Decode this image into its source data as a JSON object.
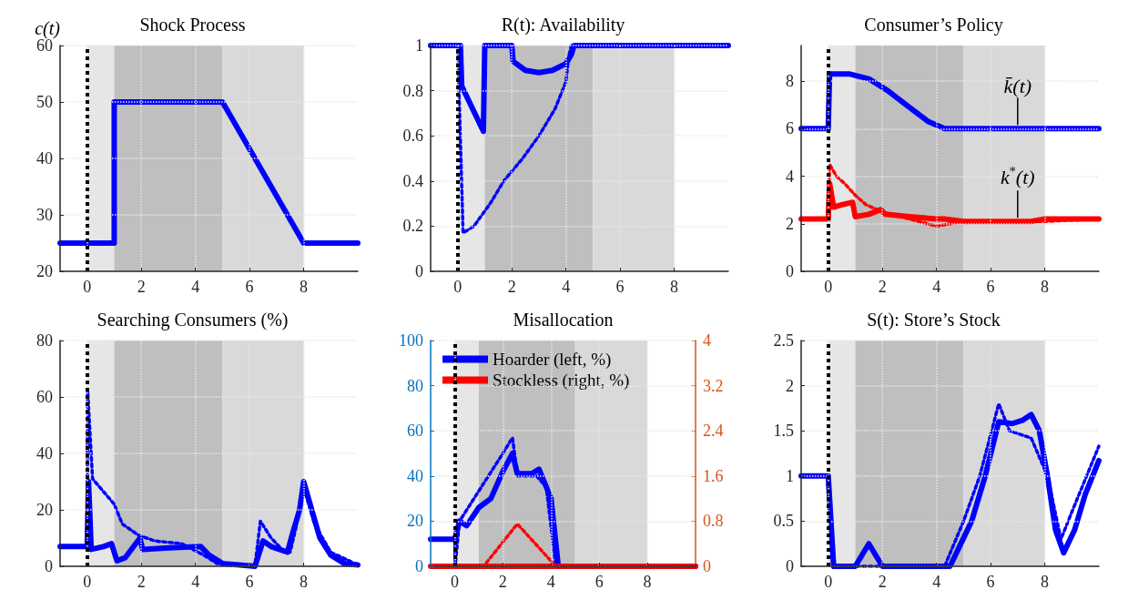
{
  "chart_data": [
    {
      "type": "line",
      "title": "Shock Process",
      "ylabel": "c(t)",
      "xlim": [
        -1,
        10
      ],
      "xticks": [
        0,
        2,
        4,
        6,
        8
      ],
      "ylim": [
        20,
        60
      ],
      "yticks": [
        20,
        30,
        40,
        50,
        60
      ],
      "grid": true,
      "legend": false,
      "marker": "none",
      "bands": [
        {
          "axis": "x",
          "from": 0,
          "to": 1,
          "color": "#e6e6e6"
        },
        {
          "axis": "x",
          "from": 1,
          "to": 5,
          "color": "#bfbfbf"
        },
        {
          "axis": "x",
          "from": 5,
          "to": 8,
          "color": "#d9d9d9"
        }
      ],
      "ref_lines": [
        {
          "axis": "x",
          "value": 0,
          "color": "#000000",
          "line_style": "dotted"
        }
      ],
      "series": [
        {
          "color": "#0000ff",
          "line_style": "solid",
          "x": [
            -1,
            1,
            1,
            5,
            8,
            10
          ],
          "values": [
            25,
            25,
            50,
            50,
            25,
            25
          ]
        }
      ]
    },
    {
      "type": "line",
      "title": "R(t): Availability",
      "xlim": [
        -1,
        10
      ],
      "xticks": [
        0,
        2,
        4,
        6,
        8
      ],
      "ylim": [
        0,
        1
      ],
      "yticks": [
        0,
        0.2,
        0.4,
        0.6,
        0.8,
        1
      ],
      "grid": true,
      "legend": false,
      "marker": "none",
      "bands": [
        {
          "axis": "x",
          "from": 0,
          "to": 1,
          "color": "#e6e6e6"
        },
        {
          "axis": "x",
          "from": 1,
          "to": 5,
          "color": "#bfbfbf"
        },
        {
          "axis": "x",
          "from": 5,
          "to": 8,
          "color": "#d9d9d9"
        }
      ],
      "ref_lines": [
        {
          "axis": "x",
          "value": 0,
          "color": "#000000",
          "line_style": "dotted"
        }
      ],
      "series": [
        {
          "color": "#0000ff",
          "line_style": "solid",
          "x": [
            -1,
            0.1,
            0.15,
            0.95,
            1,
            2,
            2.05,
            2.5,
            3,
            3.5,
            4,
            4.2,
            4.3,
            10
          ],
          "values": [
            1,
            1,
            0.82,
            0.62,
            1,
            1,
            0.93,
            0.89,
            0.88,
            0.89,
            0.92,
            0.96,
            1,
            1
          ]
        },
        {
          "color": "#0000ff",
          "line_style": "dotted",
          "x": [
            -1,
            0,
            0.2,
            0.6,
            1.2,
            1.7,
            2.4,
            3,
            3.6,
            4,
            4.1,
            4.2,
            10
          ],
          "values": [
            1,
            1,
            0.17,
            0.2,
            0.3,
            0.4,
            0.5,
            0.6,
            0.72,
            0.84,
            0.95,
            1,
            1
          ]
        }
      ]
    },
    {
      "type": "line",
      "title": "Consumer’s Policy",
      "xlim": [
        -1,
        10
      ],
      "xticks": [
        0,
        2,
        4,
        6,
        8
      ],
      "ylim": [
        0,
        9.5
      ],
      "yticks": [
        0,
        2,
        4,
        6,
        8
      ],
      "grid": true,
      "legend": false,
      "marker": "none",
      "bands": [
        {
          "axis": "x",
          "from": 0,
          "to": 1,
          "color": "#e6e6e6"
        },
        {
          "axis": "x",
          "from": 1,
          "to": 5,
          "color": "#bfbfbf"
        },
        {
          "axis": "x",
          "from": 5,
          "to": 8,
          "color": "#d9d9d9"
        }
      ],
      "ref_lines": [
        {
          "axis": "x",
          "value": 0,
          "color": "#000000",
          "line_style": "dotted"
        }
      ],
      "annotations": [
        {
          "text": "k̄(t)",
          "x": 7,
          "y": 6
        },
        {
          "text": "k$^{*}$(t)",
          "x": 7,
          "y": 2.1
        }
      ],
      "series": [
        {
          "color": "#0000ff",
          "line_style": "solid",
          "x": [
            -1,
            0,
            0.05,
            0.8,
            1.5,
            2.2,
            3,
            3.7,
            4.3,
            10
          ],
          "values": [
            6,
            6,
            8.3,
            8.3,
            8.1,
            7.6,
            6.9,
            6.3,
            6,
            6
          ]
        },
        {
          "color": "#ff0000",
          "line_style": "solid",
          "x": [
            -1,
            0,
            0.05,
            0.2,
            0.5,
            0.9,
            1,
            1.5,
            1.95,
            2.1,
            3,
            4,
            4.3,
            5,
            7.5,
            8,
            10
          ],
          "values": [
            2.2,
            2.2,
            3.7,
            2.7,
            2.8,
            2.9,
            2.3,
            2.4,
            2.6,
            2.4,
            2.3,
            2.2,
            2.2,
            2.1,
            2.1,
            2.2,
            2.2
          ]
        },
        {
          "color": "#ff0000",
          "line_style": "dotted",
          "x": [
            -1,
            0,
            0.05,
            0.3,
            0.6,
            1,
            1.4,
            2,
            3,
            4,
            5,
            8,
            10
          ],
          "values": [
            2.2,
            2.2,
            4.5,
            4,
            3.7,
            3.2,
            2.8,
            2.5,
            2.2,
            1.9,
            2.1,
            2.1,
            2.2
          ]
        }
      ]
    },
    {
      "type": "line",
      "title": "Searching Consumers (%)",
      "xlim": [
        -1,
        10
      ],
      "xticks": [
        0,
        2,
        4,
        6,
        8
      ],
      "ylim": [
        0,
        80
      ],
      "yticks": [
        0,
        20,
        40,
        60,
        80
      ],
      "grid": true,
      "legend": false,
      "marker": "none",
      "bands": [
        {
          "axis": "x",
          "from": 0,
          "to": 1,
          "color": "#e6e6e6"
        },
        {
          "axis": "x",
          "from": 1,
          "to": 5,
          "color": "#bfbfbf"
        },
        {
          "axis": "x",
          "from": 5,
          "to": 8,
          "color": "#d9d9d9"
        }
      ],
      "ref_lines": [
        {
          "axis": "x",
          "value": 0,
          "color": "#000000",
          "line_style": "dotted"
        }
      ],
      "series": [
        {
          "color": "#0000ff",
          "line_style": "solid",
          "x": [
            -1,
            0,
            0.05,
            0.15,
            0.6,
            0.9,
            1.1,
            1.4,
            1.95,
            2.05,
            3,
            4.2,
            4.5,
            5,
            6.2,
            6.5,
            6.8,
            7.1,
            7.4,
            7.6,
            7.85,
            8,
            8.3,
            8.6,
            9,
            9.5,
            10
          ],
          "values": [
            7,
            7,
            30,
            6,
            7,
            8,
            2,
            3,
            10,
            6,
            6.5,
            7,
            4,
            1,
            0,
            9,
            7,
            6,
            5,
            12,
            20,
            30,
            20,
            10,
            4,
            1,
            0.5
          ]
        },
        {
          "color": "#0000ff",
          "line_style": "dotted",
          "x": [
            -1,
            0,
            0.02,
            0.2,
            1,
            1.3,
            1.9,
            2.5,
            3.5,
            4.3,
            4.8,
            6.2,
            6.4,
            6.8,
            7.2,
            7.5,
            7.7,
            8,
            8.4,
            9,
            10
          ],
          "values": [
            7,
            7,
            62,
            31,
            22,
            15,
            11,
            9,
            8,
            4,
            1,
            0,
            16,
            10,
            6,
            5,
            13,
            28,
            15,
            5,
            0.5
          ]
        }
      ]
    },
    {
      "type": "line",
      "title": "Misallocation",
      "xlim": [
        -1,
        10
      ],
      "xticks": [
        0,
        2,
        4,
        6,
        8
      ],
      "ylim": [
        0,
        100
      ],
      "yticks": [
        0,
        20,
        40,
        60,
        80,
        100
      ],
      "y2lim": [
        0,
        4
      ],
      "y2ticks": [
        0,
        0.8,
        1.6,
        2.4,
        3.2,
        4
      ],
      "grid": true,
      "legend": "top left",
      "marker": "none",
      "bands": [
        {
          "axis": "x",
          "from": 0,
          "to": 1,
          "color": "#e6e6e6"
        },
        {
          "axis": "x",
          "from": 1,
          "to": 5,
          "color": "#bfbfbf"
        },
        {
          "axis": "x",
          "from": 5,
          "to": 8,
          "color": "#d9d9d9"
        }
      ],
      "ref_lines": [
        {
          "axis": "x",
          "value": 0,
          "color": "#000000",
          "line_style": "dotted"
        }
      ],
      "series": [
        {
          "name": "Hoarder (left, %)",
          "color": "#0000ff",
          "line_style": "solid",
          "x": [
            -1,
            0,
            0.2,
            0.5,
            1,
            1.5,
            2,
            2.4,
            2.6,
            3.2,
            3.5,
            4,
            4.3,
            10
          ],
          "values": [
            12,
            12,
            20,
            18,
            26,
            30,
            42,
            50,
            41,
            41,
            43,
            30,
            0,
            0
          ]
        },
        {
          "color": "#0000ff",
          "line_style": "dotted",
          "x": [
            0,
            0.02,
            0.2,
            0.8,
            1.4,
            2,
            2.4,
            2.6,
            3.4,
            3.8,
            4.2,
            10
          ],
          "values": [
            12,
            0,
            20,
            30,
            40,
            50,
            57,
            40,
            40,
            35,
            0,
            0
          ]
        },
        {
          "name": "Stockless (right, %)",
          "color": "#ff0000",
          "line_style": "solid",
          "axis": "y2",
          "x": [
            -1,
            10
          ],
          "values": [
            0,
            0
          ]
        },
        {
          "color": "#ff0000",
          "line_style": "dotted",
          "axis": "y2",
          "x": [
            -1,
            1.2,
            2.6,
            4.2,
            10
          ],
          "values": [
            0,
            0,
            0.75,
            0,
            0
          ]
        }
      ]
    },
    {
      "type": "line",
      "title": "S(t): Store’s Stock",
      "xlim": [
        -1,
        10
      ],
      "xticks": [
        0,
        2,
        4,
        6,
        8
      ],
      "ylim": [
        0,
        2.5
      ],
      "yticks": [
        0,
        0.5,
        1,
        1.5,
        2,
        2.5
      ],
      "grid": true,
      "legend": false,
      "marker": "none",
      "bands": [
        {
          "axis": "x",
          "from": 0,
          "to": 1,
          "color": "#e6e6e6"
        },
        {
          "axis": "x",
          "from": 1,
          "to": 5,
          "color": "#bfbfbf"
        },
        {
          "axis": "x",
          "from": 5,
          "to": 8,
          "color": "#d9d9d9"
        }
      ],
      "ref_lines": [
        {
          "axis": "x",
          "value": 0,
          "color": "#000000",
          "line_style": "dotted"
        }
      ],
      "series": [
        {
          "color": "#0000ff",
          "line_style": "solid",
          "x": [
            -1,
            0,
            0.2,
            1,
            1.5,
            2,
            4.5,
            5.3,
            5.8,
            6.3,
            6.8,
            7.2,
            7.5,
            7.8,
            8.1,
            8.4,
            8.7,
            9.1,
            9.5,
            10
          ],
          "values": [
            1,
            1,
            0,
            0,
            0.25,
            0,
            0,
            0.5,
            1,
            1.6,
            1.58,
            1.62,
            1.68,
            1.5,
            1,
            0.4,
            0.15,
            0.4,
            0.8,
            1.17
          ]
        },
        {
          "color": "#0000ff",
          "line_style": "dotted",
          "x": [
            -1,
            0,
            0.2,
            4.3,
            5,
            5.6,
            6.3,
            6.7,
            7.5,
            8.1,
            8.6,
            9,
            10
          ],
          "values": [
            1,
            1,
            0,
            0,
            0.5,
            1,
            1.8,
            1.5,
            1.42,
            1,
            0.3,
            0.6,
            1.33
          ]
        }
      ]
    }
  ]
}
